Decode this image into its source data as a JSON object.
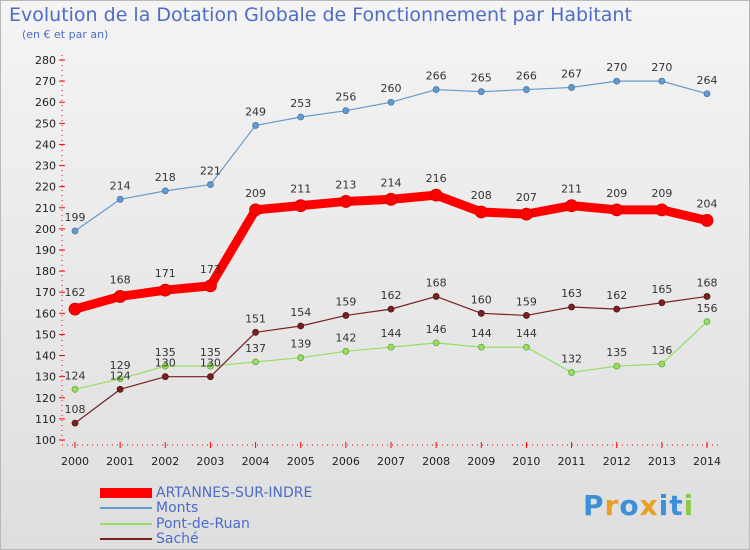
{
  "chart_data": {
    "type": "line",
    "title": "Evolution de la Dotation Globale de Fonctionnement par Habitant",
    "subtitle": "(en € et par an)",
    "xlabel": "",
    "ylabel": "",
    "categories": [
      "2000",
      "2001",
      "2002",
      "2003",
      "2004",
      "2005",
      "2006",
      "2007",
      "2008",
      "2009",
      "2010",
      "2011",
      "2012",
      "2013",
      "2014"
    ],
    "ylim": [
      100,
      280
    ],
    "ystep": 10,
    "grid": false,
    "legend_position": "bottom-left",
    "series": [
      {
        "name": "ARTANNES-SUR-INDRE",
        "color": "#ff0000",
        "values": [
          162,
          168,
          171,
          173,
          209,
          211,
          213,
          214,
          216,
          208,
          207,
          211,
          209,
          209,
          204
        ]
      },
      {
        "name": "Monts",
        "color": "#6699cc",
        "values": [
          199,
          214,
          218,
          221,
          249,
          253,
          256,
          260,
          266,
          265,
          266,
          267,
          270,
          270,
          264
        ]
      },
      {
        "name": "Pont-de-Ruan",
        "color": "#99dd66",
        "values": [
          124,
          129,
          135,
          135,
          137,
          139,
          142,
          144,
          146,
          144,
          144,
          132,
          135,
          136,
          156
        ]
      },
      {
        "name": "Saché",
        "color": "#772222",
        "values": [
          108,
          124,
          130,
          130,
          151,
          154,
          159,
          162,
          168,
          160,
          159,
          163,
          162,
          165,
          168
        ]
      }
    ],
    "data_labels": {
      "ARTANNES-SUR-INDRE": [
        "162",
        "168",
        "171",
        "173",
        "209",
        "211",
        "213",
        "214",
        "216",
        "208",
        "207",
        "211",
        "209",
        "209",
        "204"
      ],
      "Monts": [
        "199",
        "214",
        "218",
        "221",
        "249",
        "253",
        "256",
        "260",
        "266",
        "265",
        "266",
        "267",
        "270",
        "270",
        "264"
      ],
      "Pont-de-Ruan": [
        "124",
        "129",
        "135",
        "135",
        "137",
        "139",
        "142",
        "144",
        "146",
        "144",
        "144",
        "132",
        "135",
        "136",
        "156"
      ],
      "Saché": [
        "108",
        "124",
        "130",
        "130",
        "151",
        "154",
        "159",
        "162",
        "168",
        "160",
        "159",
        "163",
        "162",
        "165",
        "168"
      ]
    }
  },
  "logo": {
    "text": "Proxiti",
    "letters": [
      "P",
      "r",
      "o",
      "x",
      "i",
      "t",
      "i"
    ],
    "colors": [
      "#3c8fd8",
      "#e8a020",
      "#3c8fd8",
      "#e8a020",
      "#3c8fd8",
      "#3c8fd8",
      "#8cc84b"
    ]
  }
}
